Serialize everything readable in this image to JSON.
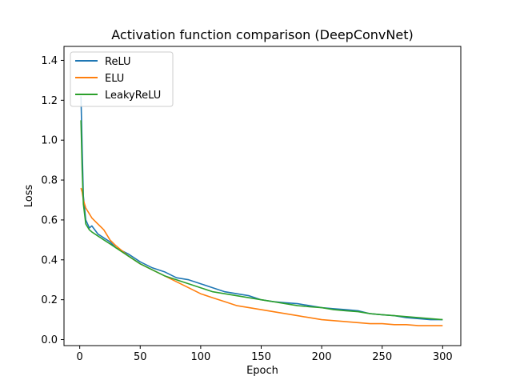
{
  "chart_data": {
    "type": "line",
    "title": "Activation function comparison (DeepConvNet)",
    "xlabel": "Epoch",
    "ylabel": "Loss",
    "xlim": [
      -13,
      315
    ],
    "ylim": [
      -0.03,
      1.47
    ],
    "xticks": [
      0,
      50,
      100,
      150,
      200,
      250,
      300
    ],
    "yticks": [
      0.0,
      0.2,
      0.4,
      0.6,
      0.8,
      1.0,
      1.2,
      1.4
    ],
    "ytick_labels": [
      "0.0",
      "0.2",
      "0.4",
      "0.6",
      "0.8",
      "1.0",
      "1.2",
      "1.4"
    ],
    "legend_position": "top-left",
    "grid": false,
    "series": [
      {
        "name": "ReLU",
        "color": "#1f77b4",
        "x": [
          1,
          2,
          3,
          5,
          8,
          10,
          15,
          20,
          25,
          30,
          40,
          50,
          60,
          70,
          80,
          90,
          100,
          110,
          120,
          130,
          140,
          150,
          160,
          170,
          180,
          190,
          200,
          210,
          220,
          230,
          240,
          250,
          260,
          270,
          280,
          290,
          300
        ],
        "y": [
          1.22,
          0.96,
          0.72,
          0.6,
          0.56,
          0.57,
          0.53,
          0.51,
          0.49,
          0.46,
          0.43,
          0.39,
          0.36,
          0.34,
          0.31,
          0.3,
          0.28,
          0.26,
          0.24,
          0.23,
          0.22,
          0.2,
          0.19,
          0.185,
          0.18,
          0.17,
          0.16,
          0.155,
          0.15,
          0.145,
          0.13,
          0.125,
          0.12,
          0.11,
          0.105,
          0.1,
          0.1
        ]
      },
      {
        "name": "ELU",
        "color": "#ff7f0e",
        "x": [
          1,
          2,
          3,
          5,
          8,
          10,
          15,
          20,
          25,
          30,
          40,
          50,
          60,
          70,
          80,
          90,
          100,
          110,
          120,
          130,
          140,
          150,
          160,
          170,
          180,
          190,
          200,
          210,
          220,
          230,
          240,
          250,
          260,
          270,
          280,
          290,
          300
        ],
        "y": [
          0.76,
          0.74,
          0.7,
          0.66,
          0.63,
          0.61,
          0.58,
          0.55,
          0.5,
          0.47,
          0.42,
          0.38,
          0.35,
          0.32,
          0.29,
          0.26,
          0.23,
          0.21,
          0.19,
          0.17,
          0.16,
          0.15,
          0.14,
          0.13,
          0.12,
          0.11,
          0.1,
          0.095,
          0.09,
          0.085,
          0.08,
          0.08,
          0.075,
          0.075,
          0.07,
          0.07,
          0.07
        ]
      },
      {
        "name": "LeakyReLU",
        "color": "#2ca02c",
        "x": [
          1,
          2,
          3,
          5,
          8,
          10,
          15,
          20,
          25,
          30,
          40,
          50,
          60,
          70,
          80,
          90,
          100,
          110,
          120,
          130,
          140,
          150,
          160,
          170,
          180,
          190,
          200,
          210,
          220,
          230,
          240,
          250,
          260,
          270,
          280,
          290,
          300
        ],
        "y": [
          1.1,
          0.85,
          0.68,
          0.58,
          0.55,
          0.54,
          0.52,
          0.5,
          0.48,
          0.46,
          0.42,
          0.38,
          0.35,
          0.32,
          0.3,
          0.28,
          0.26,
          0.24,
          0.23,
          0.22,
          0.21,
          0.2,
          0.19,
          0.18,
          0.17,
          0.165,
          0.16,
          0.15,
          0.145,
          0.14,
          0.13,
          0.125,
          0.12,
          0.115,
          0.11,
          0.105,
          0.1
        ]
      }
    ]
  }
}
